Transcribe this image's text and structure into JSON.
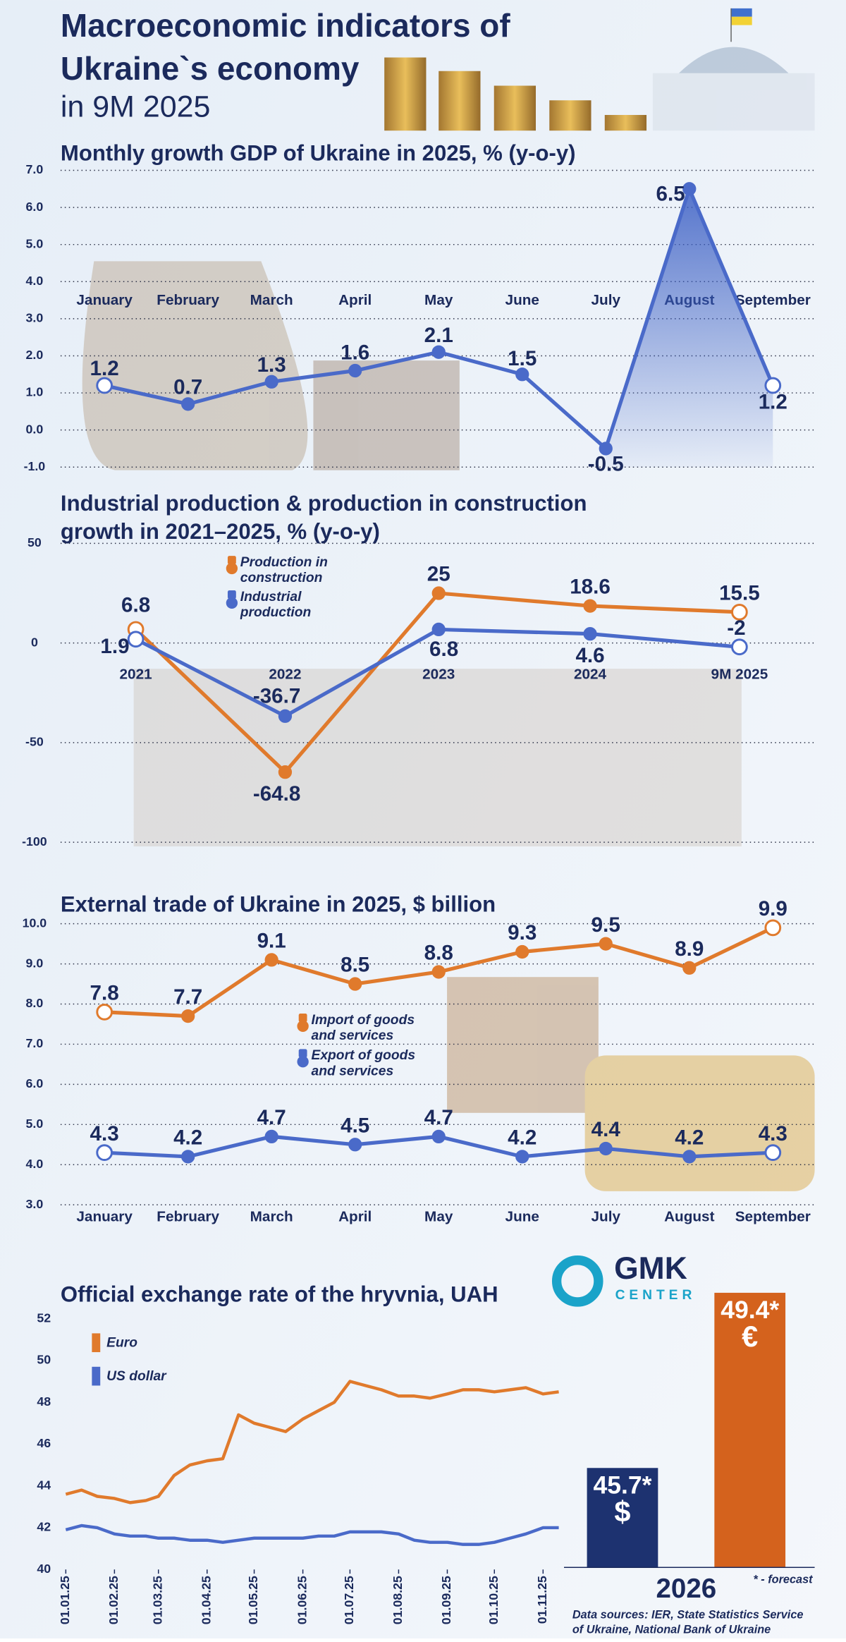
{
  "header": {
    "title": [
      "Macroeconomic indicators of",
      "Ukraine`s economy"
    ],
    "subtitle": "in 9M 2025"
  },
  "logo": {
    "name": "GMK",
    "sub": "CENTER"
  },
  "footer": {
    "sources": [
      "Data sources:  IER, State Statistics Service",
      "of Ukraine, National Bank of Ukraine"
    ]
  },
  "chart_data": [
    {
      "type": "line",
      "title": "Monthly growth GDP of Ukraine in 2025, % (y-o-y)",
      "categories": [
        "January",
        "February",
        "March",
        "April",
        "May",
        "June",
        "July",
        "August",
        "September"
      ],
      "series": [
        {
          "name": null,
          "color": "#4a6ac9",
          "values": [
            1.2,
            0.7,
            1.3,
            1.6,
            2.1,
            1.5,
            -0.5,
            6.5,
            1.2
          ]
        }
      ],
      "ylim": [
        -1,
        7
      ],
      "yticks": [
        {
          "value": -1,
          "label": "-1.0"
        },
        {
          "value": 0,
          "label": "0.0"
        },
        {
          "value": 1,
          "label": "1.0"
        },
        {
          "value": 2,
          "label": "2.0"
        },
        {
          "value": 3,
          "label": "3.0"
        },
        {
          "value": 4,
          "label": "4.0"
        },
        {
          "value": 5,
          "label": "5.0"
        },
        {
          "value": 6,
          "label": "6.0"
        },
        {
          "value": 7,
          "label": "7.0"
        }
      ],
      "grid": true
    },
    {
      "type": "line",
      "title": [
        "Industrial production & production in construction",
        "growth in 2021–2025, % (y-o-y)"
      ],
      "categories": [
        "2021",
        "2022",
        "2023",
        "2024",
        "9M 2025"
      ],
      "series": [
        {
          "name": "Production in construction",
          "color": "#e07a2c",
          "values": [
            6.8,
            -64.8,
            25,
            18.6,
            15.5
          ]
        },
        {
          "name": "Industrial production",
          "color": "#4a6ac9",
          "values": [
            1.9,
            -36.7,
            6.8,
            4.6,
            -2
          ]
        }
      ],
      "ylim": [
        -100,
        50
      ],
      "yticks": [
        -100,
        -50,
        0,
        50
      ],
      "grid": true,
      "legend": "top-left"
    },
    {
      "type": "line",
      "title": "External trade of Ukraine in 2025, $ billion",
      "categories": [
        "January",
        "February",
        "March",
        "April",
        "May",
        "June",
        "July",
        "August",
        "September"
      ],
      "series": [
        {
          "name": "Import of goods and services",
          "color": "#e07a2c",
          "values": [
            7.8,
            7.7,
            9.1,
            8.5,
            8.8,
            9.3,
            9.5,
            8.9,
            9.9
          ]
        },
        {
          "name": "Export of goods and services",
          "color": "#4a6ac9",
          "values": [
            4.3,
            4.2,
            4.7,
            4.5,
            4.7,
            4.2,
            4.4,
            4.2,
            4.3
          ]
        }
      ],
      "ylim": [
        3,
        10
      ],
      "yticks": [
        {
          "value": 3,
          "label": "3.0"
        },
        {
          "value": 4,
          "label": "4.0"
        },
        {
          "value": 5,
          "label": "5.0"
        },
        {
          "value": 6,
          "label": "6.0"
        },
        {
          "value": 7,
          "label": "7.0"
        },
        {
          "value": 8,
          "label": "8.0"
        },
        {
          "value": 9,
          "label": "9.0"
        },
        {
          "value": 10,
          "label": "10.0"
        }
      ],
      "grid": true,
      "legend": "center"
    },
    {
      "type": "timeline",
      "title": "Official exchange rate of the hryvnia, UAH",
      "x": [
        "01.01.25",
        "11.01.25",
        "21.01.25",
        "01.02.25",
        "11.02.25",
        "21.02.25",
        "01.03.25",
        "11.03.25",
        "21.03.25",
        "01.04.25",
        "11.04.25",
        "21.04.25",
        "01.05.25",
        "11.05.25",
        "21.05.25",
        "01.06.25",
        "11.06.25",
        "21.06.25",
        "01.07.25",
        "11.07.25",
        "21.07.25",
        "01.08.25",
        "11.08.25",
        "21.08.25",
        "01.09.25",
        "11.09.25",
        "21.09.25",
        "01.10.25",
        "11.10.25",
        "21.10.25",
        "01.11.25",
        "11.11.25"
      ],
      "series": [
        {
          "name": "Euro",
          "color": "#e07a2c",
          "values": [
            43.6,
            43.8,
            43.5,
            43.4,
            43.2,
            43.3,
            43.5,
            44.5,
            45.0,
            45.2,
            45.3,
            47.4,
            47.0,
            46.8,
            46.6,
            47.2,
            47.6,
            48.0,
            49.0,
            48.8,
            48.6,
            48.3,
            48.3,
            48.2,
            48.4,
            48.6,
            48.6,
            48.5,
            48.6,
            48.7,
            48.4,
            48.5
          ]
        },
        {
          "name": "US dollar",
          "color": "#4a6ac9",
          "values": [
            41.9,
            42.1,
            42.0,
            41.7,
            41.6,
            41.6,
            41.5,
            41.5,
            41.4,
            41.4,
            41.3,
            41.4,
            41.5,
            41.5,
            41.5,
            41.5,
            41.6,
            41.6,
            41.8,
            41.8,
            41.8,
            41.7,
            41.4,
            41.3,
            41.3,
            41.2,
            41.2,
            41.3,
            41.5,
            41.7,
            42.0,
            42.0
          ]
        }
      ],
      "xlim": [
        "01.01.25",
        "15.11.25"
      ],
      "xticks": [
        "01.01.25",
        "01.02.25",
        "01.03.25",
        "01.04.25",
        "01.05.25",
        "01.06.25",
        "01.07.25",
        "01.08.25",
        "01.09.25",
        "01.10.25",
        "01.11.25"
      ],
      "ylim": [
        40,
        52
      ],
      "yticks": [
        40,
        42,
        44,
        46,
        48,
        50,
        52
      ],
      "grid": false,
      "legend": "top-left"
    },
    {
      "type": "bar",
      "x_label": "2026",
      "note": "* - forecast",
      "categories": [
        "$",
        "€"
      ],
      "values": [
        45.7,
        49.4
      ],
      "value_labels": [
        "45.7*",
        "49.4*"
      ],
      "colors": [
        "#1d3270",
        "#d4621d"
      ],
      "ylim": [
        43.6,
        50
      ]
    }
  ]
}
